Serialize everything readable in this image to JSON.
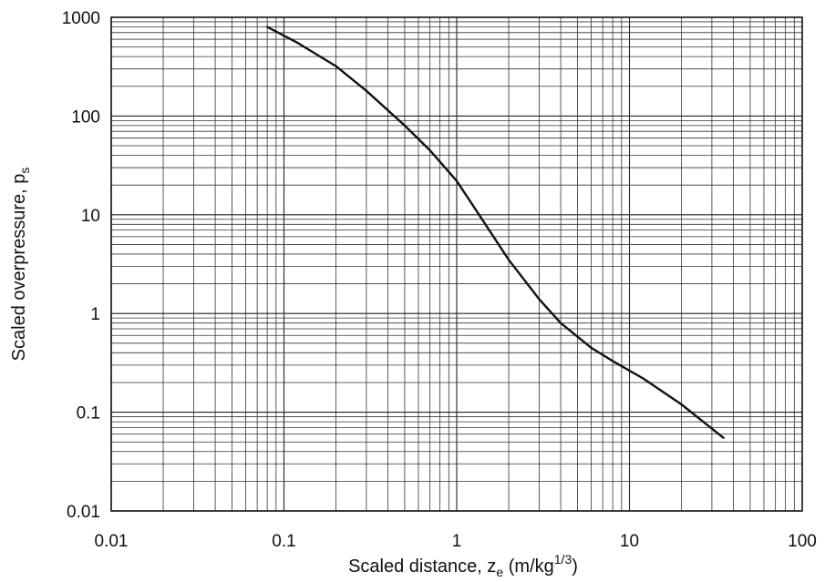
{
  "chart_data": {
    "type": "line",
    "x_scale": "log",
    "y_scale": "log",
    "xlim": [
      0.01,
      100
    ],
    "ylim": [
      0.01,
      1000
    ],
    "grid": true,
    "x_ticks": [
      "0.01",
      "0.1",
      "1",
      "10",
      "100"
    ],
    "y_ticks": [
      "0.01",
      "0.1",
      "1",
      "10",
      "100",
      "1000"
    ],
    "xlabel": {
      "main": "Scaled distance, z",
      "subscript": "e",
      "unit_open": " (m/kg",
      "superscript": "1/3",
      "unit_close": ")"
    },
    "ylabel": {
      "main": "Scaled overpressure, p",
      "subscript": "s"
    },
    "series": [
      {
        "x": [
          0.08,
          0.12,
          0.2,
          0.3,
          0.5,
          0.7,
          1.0,
          1.3,
          2.0,
          3.0,
          4.0,
          6.0,
          8.0,
          12.0,
          20.0,
          35.0
        ],
        "y": [
          800,
          550,
          320,
          180,
          80,
          45,
          22,
          11,
          3.5,
          1.4,
          0.8,
          0.45,
          0.33,
          0.22,
          0.12,
          0.055
        ]
      }
    ]
  }
}
